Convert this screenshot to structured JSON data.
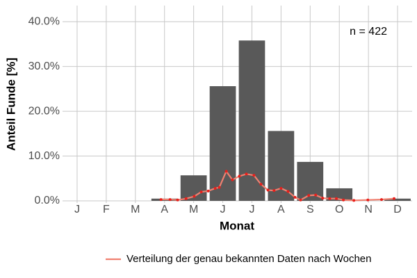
{
  "chart_data": {
    "type": "bar",
    "xlabel": "Monat",
    "ylabel": "Anteil Funde [%]",
    "annotation": "n = 422",
    "x": [
      1,
      2,
      3,
      4,
      5,
      6,
      7,
      8,
      9,
      10,
      11,
      12
    ],
    "values": [
      0,
      0,
      0,
      0.5,
      5.7,
      25.6,
      35.8,
      15.6,
      8.7,
      2.8,
      0,
      0.5
    ],
    "color": "#595959",
    "xlim": [
      0.5,
      12.5
    ],
    "ylim": [
      0,
      43.6
    ],
    "xticks": [
      {
        "value": 1,
        "label": "J"
      },
      {
        "value": 2,
        "label": "F"
      },
      {
        "value": 3,
        "label": "M"
      },
      {
        "value": 4,
        "label": "A"
      },
      {
        "value": 5,
        "label": "M"
      },
      {
        "value": 6,
        "label": "J"
      },
      {
        "value": 7,
        "label": "J"
      },
      {
        "value": 8,
        "label": "A"
      },
      {
        "value": 9,
        "label": "S"
      },
      {
        "value": 10,
        "label": "O"
      },
      {
        "value": 11,
        "label": "N"
      },
      {
        "value": 12,
        "label": "D"
      }
    ],
    "yticks": [
      {
        "value": 0,
        "label": "0.0%"
      },
      {
        "value": 10,
        "label": "10.0%"
      },
      {
        "value": 20,
        "label": "20.0%"
      },
      {
        "value": 30,
        "label": "30.0%"
      },
      {
        "value": 40,
        "label": "40.0%"
      }
    ],
    "grid": true,
    "legend": "bottom",
    "series": [
      {
        "name": "Verteilung der genau bekannten Daten nach Wochen",
        "color": "#f08070",
        "marker_color": "#e8201c",
        "x": [
          3.88,
          4.19,
          4.45,
          4.74,
          5.02,
          5.26,
          5.5,
          5.74,
          5.88,
          6.12,
          6.33,
          6.57,
          6.81,
          7.07,
          7.31,
          7.55,
          7.76,
          8.0,
          8.24,
          8.48,
          8.67,
          8.95,
          9.19,
          9.43,
          9.67,
          9.9,
          10.14,
          10.5,
          10.98,
          11.45,
          11.88
        ],
        "values": [
          0.3,
          0.3,
          0.2,
          0.5,
          1.0,
          2.0,
          2.2,
          2.8,
          3.0,
          6.6,
          4.7,
          5.5,
          6.0,
          5.7,
          3.7,
          2.4,
          2.3,
          2.8,
          2.1,
          0.8,
          0.2,
          1.2,
          1.3,
          0.6,
          0.5,
          0.5,
          0.2,
          0.1,
          0.2,
          0.3,
          0.5
        ]
      }
    ]
  }
}
